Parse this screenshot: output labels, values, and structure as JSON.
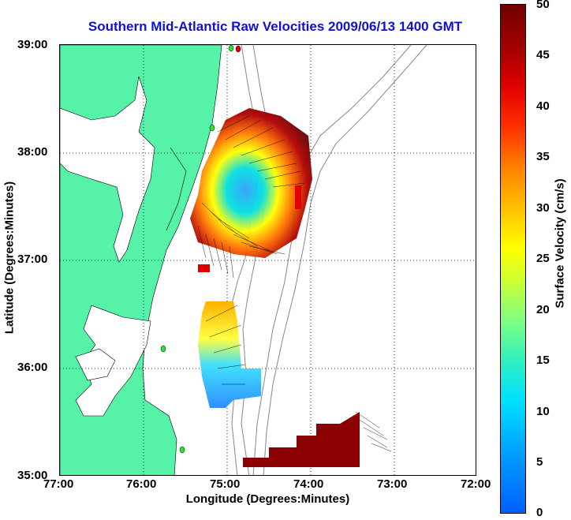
{
  "title": "Southern Mid-Atlantic Raw Velocities 2009/06/13 1400 GMT",
  "axes": {
    "xlabel": "Longitude (Degrees:Minutes)",
    "ylabel": "Latitude (Degrees:Minutes)",
    "xticks": [
      "77:00",
      "76:00",
      "75:00",
      "74:00",
      "73:00",
      "72:00"
    ],
    "yticks": [
      "39:00",
      "38:00",
      "37:00",
      "36:00",
      "35:00"
    ]
  },
  "colorbar": {
    "label": "Surface Velocity (cm/s)",
    "ticks": [
      "50",
      "45",
      "40",
      "35",
      "30",
      "25",
      "20",
      "15",
      "10",
      "5",
      "0"
    ]
  },
  "colors": {
    "land": "#55f2a8",
    "title": "#1010d8",
    "station": "#33dd33"
  }
}
